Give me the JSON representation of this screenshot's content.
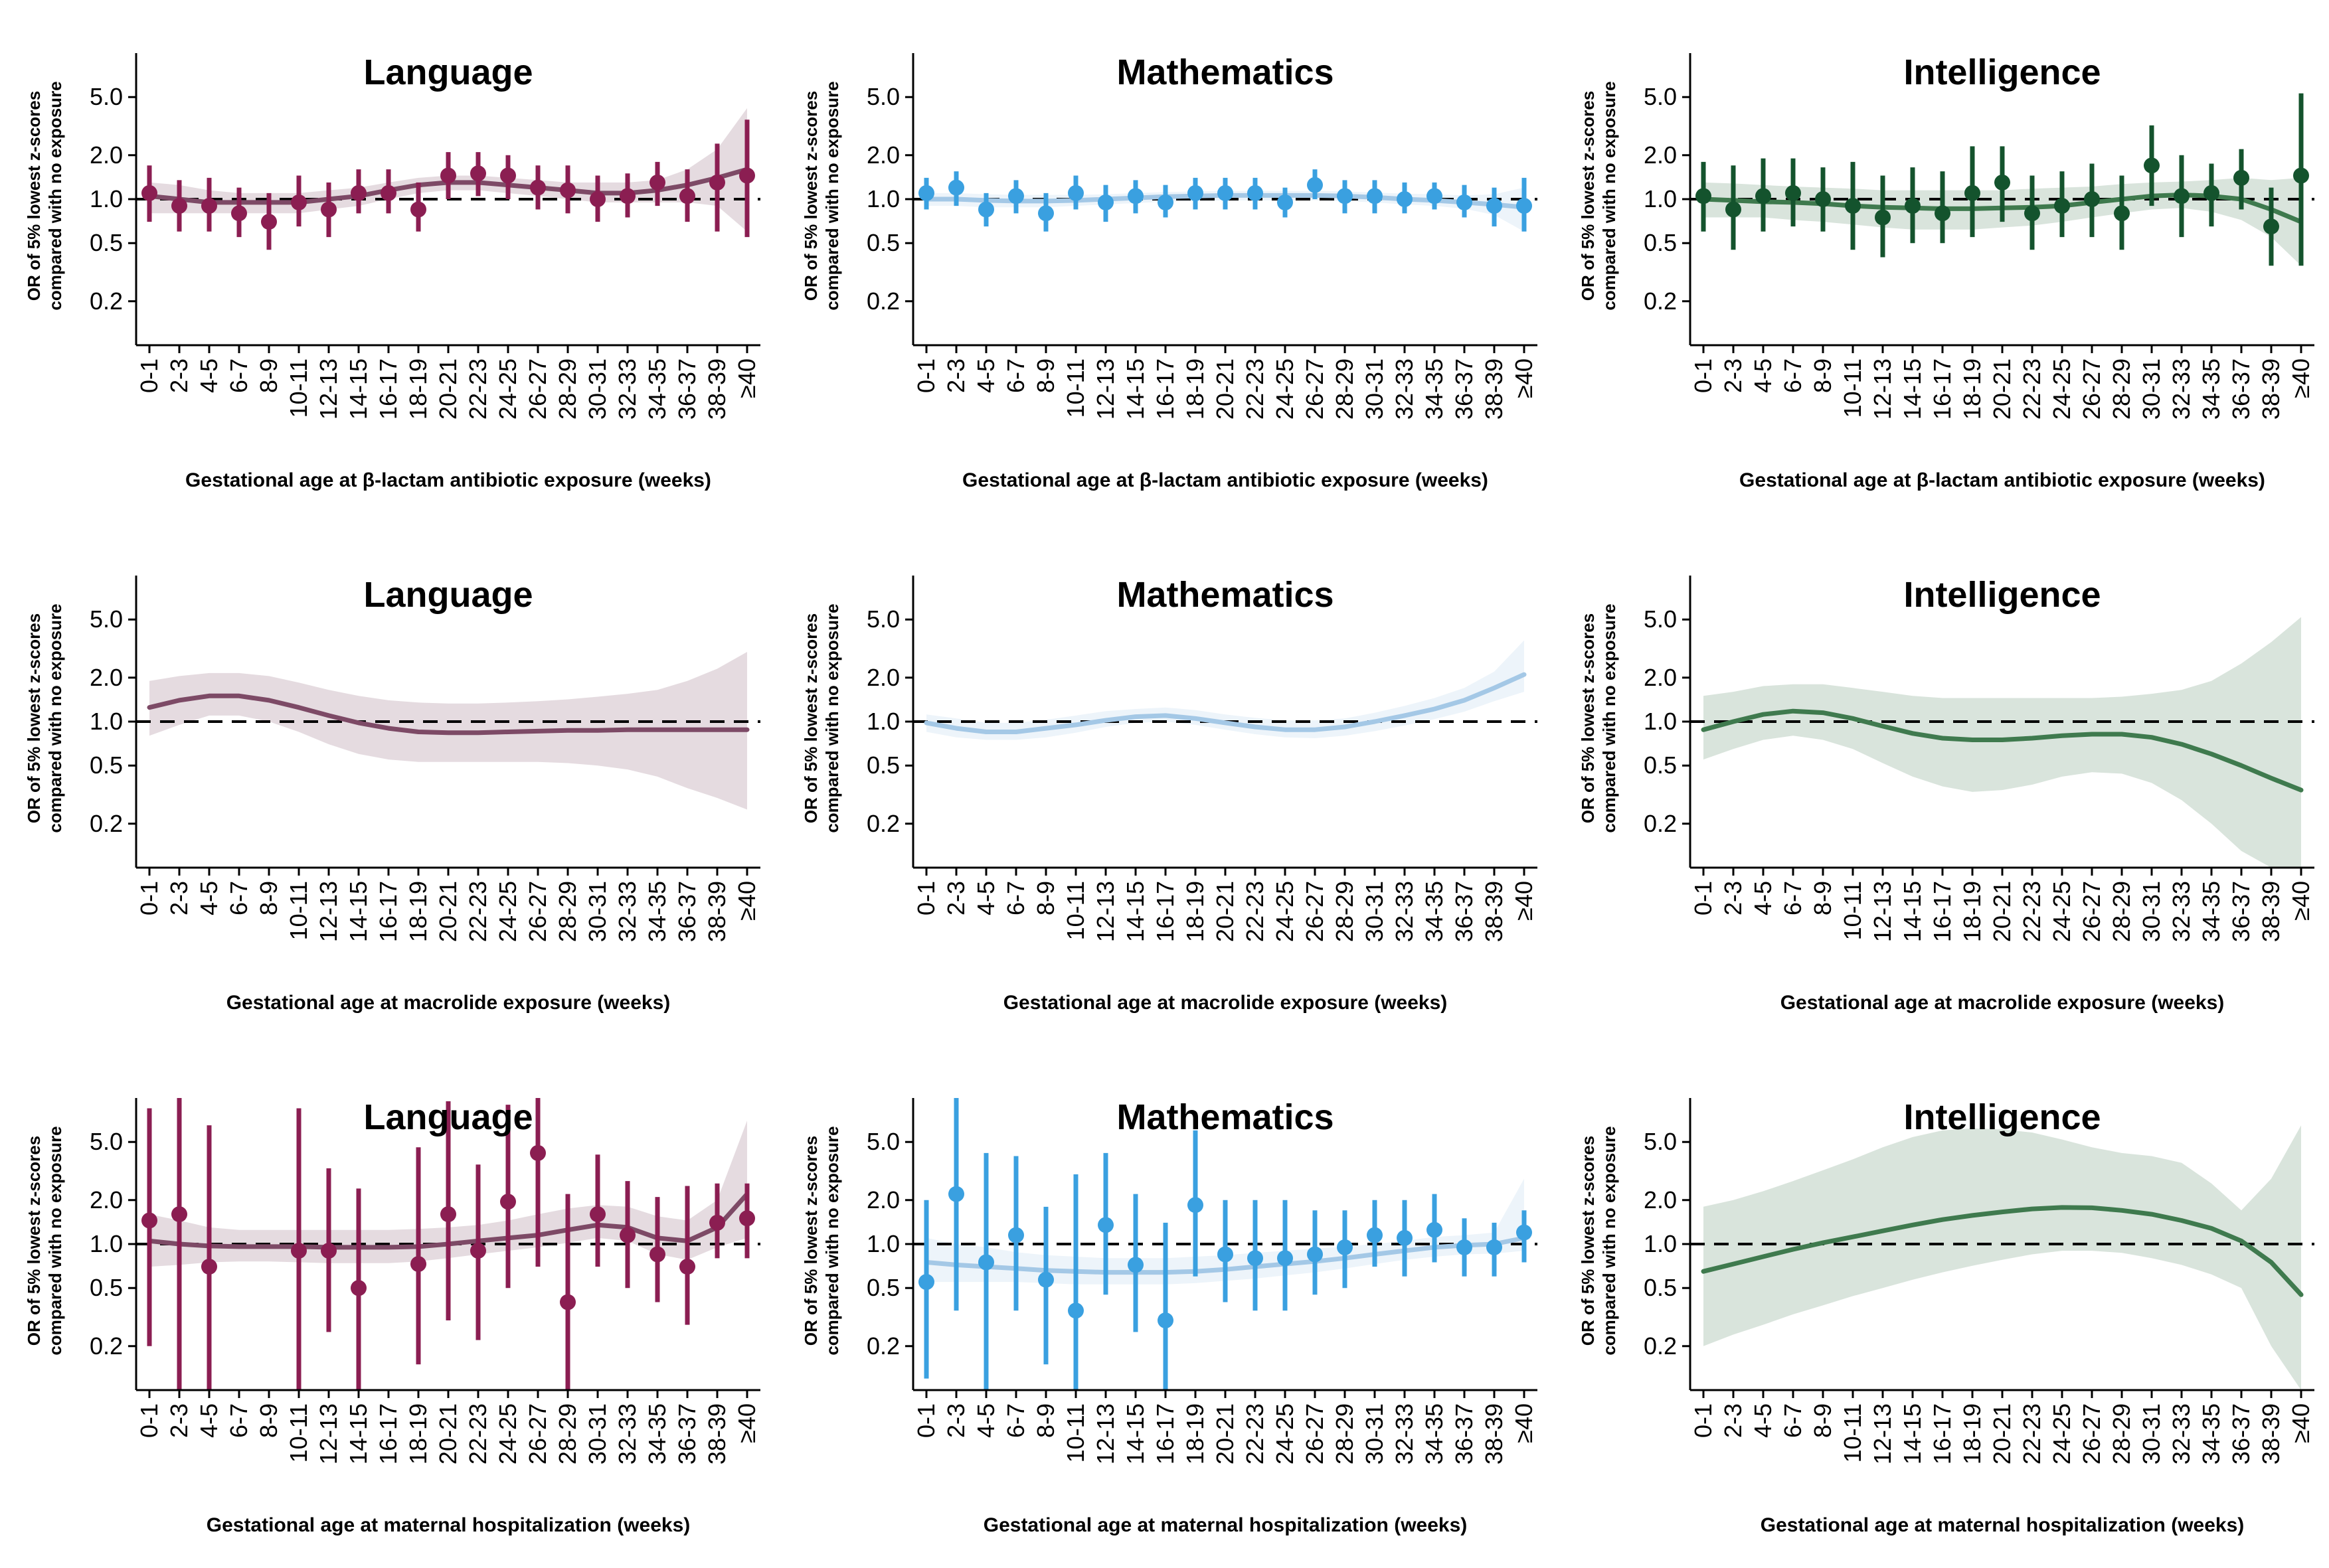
{
  "categories": [
    "0-1",
    "2-3",
    "4-5",
    "6-7",
    "8-9",
    "10-11",
    "12-13",
    "14-15",
    "16-17",
    "18-19",
    "20-21",
    "22-23",
    "24-25",
    "26-27",
    "28-29",
    "30-31",
    "32-33",
    "34-35",
    "36-37",
    "38-39",
    "≥40"
  ],
  "y_axis": {
    "label_line1": "OR of 5% lowest z-scores",
    "label_line2": "compared with no exposure",
    "ticks": [
      0.2,
      0.5,
      1.0,
      2.0,
      5.0
    ],
    "tick_labels": [
      "0.2",
      "0.5",
      "1.0",
      "2.0",
      "5.0"
    ],
    "scale": "log",
    "reference_line": 1.0
  },
  "colors": {
    "language": "#8b1e52",
    "language_curve": "#7d4a66",
    "mathematics": "#3aa0e0",
    "mathematics_curve": "#a4c8e6",
    "intelligence": "#14532d",
    "intelligence_curve": "#3f7a4e"
  },
  "chart_data": [
    {
      "type": "line",
      "title": "Language",
      "xlabel": "Gestational age at β-lactam antibiotic exposure (weeks)",
      "color": "language",
      "ylim": [
        0.1,
        10
      ],
      "grid": false,
      "points": [
        1.1,
        0.9,
        0.9,
        0.8,
        0.7,
        0.95,
        0.85,
        1.1,
        1.1,
        0.85,
        1.45,
        1.5,
        1.45,
        1.2,
        1.15,
        1.0,
        1.05,
        1.3,
        1.05,
        1.3,
        1.45
      ],
      "err_lo": [
        0.7,
        0.6,
        0.6,
        0.55,
        0.45,
        0.65,
        0.55,
        0.8,
        0.8,
        0.6,
        1.0,
        1.05,
        1.0,
        0.85,
        0.8,
        0.7,
        0.75,
        0.9,
        0.7,
        0.6,
        0.55
      ],
      "err_hi": [
        1.7,
        1.35,
        1.4,
        1.2,
        1.1,
        1.45,
        1.3,
        1.6,
        1.6,
        1.3,
        2.1,
        2.1,
        2.0,
        1.7,
        1.7,
        1.45,
        1.5,
        1.8,
        1.6,
        2.4,
        3.5
      ],
      "curve": [
        1.05,
        1.0,
        0.95,
        0.95,
        0.95,
        0.95,
        1.0,
        1.05,
        1.15,
        1.25,
        1.3,
        1.3,
        1.25,
        1.2,
        1.15,
        1.1,
        1.1,
        1.15,
        1.25,
        1.4,
        1.6
      ],
      "ci_lo": [
        0.8,
        0.8,
        0.8,
        0.8,
        0.8,
        0.8,
        0.85,
        0.9,
        1.0,
        1.1,
        1.15,
        1.15,
        1.1,
        1.05,
        1.0,
        0.95,
        0.95,
        0.95,
        0.95,
        0.9,
        0.6
      ],
      "ci_hi": [
        1.3,
        1.25,
        1.15,
        1.1,
        1.1,
        1.1,
        1.15,
        1.2,
        1.3,
        1.4,
        1.45,
        1.45,
        1.4,
        1.35,
        1.3,
        1.3,
        1.3,
        1.35,
        1.6,
        2.2,
        4.2
      ]
    },
    {
      "type": "line",
      "title": "Mathematics",
      "xlabel": "Gestational age at β-lactam antibiotic exposure (weeks)",
      "color": "mathematics",
      "ylim": [
        0.1,
        10
      ],
      "grid": false,
      "points": [
        1.1,
        1.2,
        0.85,
        1.05,
        0.8,
        1.1,
        0.95,
        1.05,
        0.95,
        1.1,
        1.1,
        1.1,
        0.95,
        1.25,
        1.05,
        1.05,
        1.0,
        1.05,
        0.95,
        0.9,
        0.9
      ],
      "err_lo": [
        0.85,
        0.9,
        0.65,
        0.8,
        0.6,
        0.85,
        0.7,
        0.8,
        0.75,
        0.85,
        0.85,
        0.85,
        0.75,
        1.0,
        0.8,
        0.8,
        0.8,
        0.85,
        0.75,
        0.65,
        0.6
      ],
      "err_hi": [
        1.4,
        1.55,
        1.1,
        1.35,
        1.1,
        1.45,
        1.25,
        1.35,
        1.25,
        1.4,
        1.4,
        1.4,
        1.2,
        1.6,
        1.35,
        1.35,
        1.3,
        1.3,
        1.25,
        1.2,
        1.4
      ],
      "curve": [
        1.0,
        1.0,
        0.98,
        0.97,
        0.97,
        0.98,
        1.0,
        1.02,
        1.04,
        1.05,
        1.06,
        1.06,
        1.06,
        1.06,
        1.05,
        1.03,
        1.0,
        0.98,
        0.95,
        0.92,
        0.88
      ],
      "ci_lo": [
        0.9,
        0.9,
        0.88,
        0.88,
        0.88,
        0.9,
        0.92,
        0.94,
        0.96,
        0.97,
        0.98,
        0.98,
        0.98,
        0.98,
        0.97,
        0.95,
        0.92,
        0.9,
        0.86,
        0.78,
        0.6
      ],
      "ci_hi": [
        1.1,
        1.1,
        1.08,
        1.07,
        1.07,
        1.07,
        1.08,
        1.1,
        1.12,
        1.13,
        1.14,
        1.14,
        1.14,
        1.14,
        1.13,
        1.11,
        1.09,
        1.08,
        1.06,
        1.08,
        1.2
      ]
    },
    {
      "type": "line",
      "title": "Intelligence",
      "xlabel": "Gestational age at β-lactam antibiotic exposure (weeks)",
      "color": "intelligence",
      "ylim": [
        0.1,
        10
      ],
      "grid": false,
      "points": [
        1.05,
        0.85,
        1.05,
        1.1,
        1.0,
        0.9,
        0.75,
        0.9,
        0.8,
        1.1,
        1.3,
        0.8,
        0.9,
        1.0,
        0.8,
        1.7,
        1.05,
        1.1,
        1.4,
        0.65,
        1.45
      ],
      "err_lo": [
        0.6,
        0.45,
        0.6,
        0.65,
        0.6,
        0.45,
        0.4,
        0.5,
        0.5,
        0.55,
        0.7,
        0.45,
        0.55,
        0.55,
        0.45,
        0.9,
        0.55,
        0.65,
        0.85,
        0.35,
        0.35
      ],
      "err_hi": [
        1.8,
        1.7,
        1.9,
        1.9,
        1.65,
        1.8,
        1.45,
        1.65,
        1.55,
        2.3,
        2.3,
        1.45,
        1.55,
        1.75,
        1.45,
        3.2,
        2.0,
        1.75,
        2.2,
        1.2,
        5.3
      ],
      "curve": [
        1.0,
        0.98,
        0.96,
        0.95,
        0.93,
        0.9,
        0.88,
        0.87,
        0.86,
        0.86,
        0.87,
        0.88,
        0.9,
        0.95,
        1.0,
        1.05,
        1.07,
        1.05,
        1.0,
        0.85,
        0.7
      ],
      "ci_lo": [
        0.75,
        0.75,
        0.75,
        0.72,
        0.7,
        0.67,
        0.64,
        0.62,
        0.62,
        0.62,
        0.64,
        0.66,
        0.7,
        0.75,
        0.8,
        0.85,
        0.87,
        0.82,
        0.72,
        0.55,
        0.35
      ],
      "ci_hi": [
        1.3,
        1.28,
        1.25,
        1.22,
        1.2,
        1.18,
        1.15,
        1.15,
        1.15,
        1.15,
        1.15,
        1.18,
        1.2,
        1.22,
        1.27,
        1.3,
        1.32,
        1.35,
        1.4,
        1.35,
        1.4
      ]
    },
    {
      "type": "line",
      "title": "Language",
      "xlabel": "Gestational age at macrolide exposure (weeks)",
      "color": "language",
      "ylim": [
        0.1,
        10
      ],
      "grid": false,
      "curve": [
        1.25,
        1.4,
        1.5,
        1.5,
        1.4,
        1.25,
        1.1,
        0.98,
        0.9,
        0.85,
        0.84,
        0.84,
        0.85,
        0.86,
        0.87,
        0.87,
        0.88,
        0.88,
        0.88,
        0.88,
        0.88
      ],
      "ci_lo": [
        0.8,
        0.95,
        1.1,
        1.1,
        1.0,
        0.85,
        0.7,
        0.6,
        0.55,
        0.53,
        0.53,
        0.53,
        0.53,
        0.53,
        0.52,
        0.5,
        0.47,
        0.42,
        0.35,
        0.3,
        0.25
      ],
      "ci_hi": [
        1.9,
        2.05,
        2.15,
        2.15,
        2.05,
        1.85,
        1.65,
        1.5,
        1.4,
        1.35,
        1.33,
        1.33,
        1.35,
        1.38,
        1.42,
        1.48,
        1.55,
        1.65,
        1.9,
        2.3,
        3.0
      ]
    },
    {
      "type": "line",
      "title": "Mathematics",
      "xlabel": "Gestational age at macrolide exposure (weeks)",
      "color": "mathematics",
      "ylim": [
        0.1,
        10
      ],
      "grid": false,
      "curve": [
        0.98,
        0.9,
        0.85,
        0.85,
        0.9,
        0.95,
        1.02,
        1.08,
        1.1,
        1.05,
        0.98,
        0.92,
        0.88,
        0.88,
        0.92,
        1.0,
        1.1,
        1.22,
        1.4,
        1.7,
        2.1
      ],
      "ci_lo": [
        0.85,
        0.78,
        0.75,
        0.75,
        0.78,
        0.84,
        0.92,
        0.98,
        1.0,
        0.95,
        0.88,
        0.82,
        0.78,
        0.77,
        0.8,
        0.86,
        0.94,
        1.04,
        1.17,
        1.38,
        1.6
      ],
      "ci_hi": [
        1.12,
        1.05,
        0.98,
        0.98,
        1.03,
        1.1,
        1.18,
        1.22,
        1.25,
        1.2,
        1.12,
        1.06,
        1.02,
        1.02,
        1.05,
        1.15,
        1.28,
        1.45,
        1.7,
        2.2,
        3.6
      ]
    },
    {
      "type": "line",
      "title": "Intelligence",
      "xlabel": "Gestational age at macrolide exposure (weeks)",
      "color": "intelligence",
      "ylim": [
        0.1,
        10
      ],
      "grid": false,
      "curve": [
        0.88,
        1.0,
        1.12,
        1.18,
        1.15,
        1.05,
        0.93,
        0.83,
        0.77,
        0.75,
        0.75,
        0.77,
        0.8,
        0.82,
        0.82,
        0.78,
        0.7,
        0.6,
        0.5,
        0.41,
        0.34
      ],
      "ci_lo": [
        0.55,
        0.65,
        0.75,
        0.8,
        0.75,
        0.65,
        0.52,
        0.42,
        0.36,
        0.33,
        0.34,
        0.37,
        0.42,
        0.45,
        0.44,
        0.38,
        0.29,
        0.2,
        0.13,
        0.09,
        0.06
      ],
      "ci_hi": [
        1.5,
        1.6,
        1.75,
        1.8,
        1.8,
        1.7,
        1.6,
        1.5,
        1.45,
        1.45,
        1.45,
        1.45,
        1.45,
        1.45,
        1.48,
        1.55,
        1.65,
        1.9,
        2.5,
        3.5,
        5.2
      ]
    },
    {
      "type": "line",
      "title": "Language",
      "xlabel": "Gestational age at maternal hospitalization (weeks)",
      "color": "language",
      "ylim": [
        0.1,
        10
      ],
      "grid": false,
      "points": [
        1.45,
        1.6,
        0.7,
        null,
        null,
        0.9,
        0.9,
        0.5,
        null,
        0.73,
        1.6,
        0.9,
        1.95,
        4.2,
        0.4,
        1.6,
        1.15,
        0.85,
        0.7,
        1.4,
        1.5
      ],
      "err_lo": [
        0.2,
        0.05,
        0.05,
        null,
        null,
        0.05,
        0.25,
        0.1,
        null,
        0.15,
        0.3,
        0.22,
        0.5,
        0.7,
        0.06,
        0.7,
        0.5,
        0.4,
        0.28,
        0.8,
        0.8
      ],
      "err_hi": [
        8.5,
        10,
        6.5,
        null,
        null,
        8.5,
        3.3,
        2.4,
        null,
        4.6,
        9.5,
        3.5,
        9,
        10,
        2.2,
        4.1,
        2.7,
        2.1,
        2.5,
        2.6,
        2.6
      ],
      "curve": [
        1.05,
        1.0,
        0.97,
        0.96,
        0.96,
        0.96,
        0.95,
        0.95,
        0.95,
        0.96,
        1.0,
        1.05,
        1.1,
        1.15,
        1.25,
        1.35,
        1.3,
        1.1,
        1.05,
        1.3,
        2.2
      ],
      "ci_lo": [
        0.7,
        0.72,
        0.75,
        0.76,
        0.76,
        0.75,
        0.74,
        0.74,
        0.74,
        0.76,
        0.8,
        0.85,
        0.9,
        0.95,
        1.02,
        1.1,
        1.05,
        0.85,
        0.78,
        0.95,
        1.1
      ],
      "ci_hi": [
        1.6,
        1.45,
        1.3,
        1.25,
        1.25,
        1.25,
        1.25,
        1.25,
        1.25,
        1.27,
        1.3,
        1.35,
        1.45,
        1.6,
        1.75,
        1.85,
        1.8,
        1.55,
        1.45,
        2.0,
        7.0
      ]
    },
    {
      "type": "line",
      "title": "Mathematics",
      "xlabel": "Gestational age at maternal hospitalization (weeks)",
      "color": "mathematics",
      "ylim": [
        0.1,
        10
      ],
      "grid": false,
      "points": [
        0.55,
        2.2,
        0.75,
        1.15,
        0.57,
        0.35,
        1.35,
        0.72,
        0.3,
        1.85,
        0.85,
        0.8,
        0.8,
        0.85,
        0.95,
        1.15,
        1.1,
        1.25,
        0.95,
        0.95,
        1.2
      ],
      "err_lo": [
        0.12,
        0.35,
        0.1,
        0.35,
        0.15,
        0.05,
        0.45,
        0.25,
        0.05,
        0.6,
        0.4,
        0.35,
        0.35,
        0.45,
        0.5,
        0.7,
        0.6,
        0.75,
        0.6,
        0.6,
        0.75
      ],
      "err_hi": [
        2.0,
        10,
        4.2,
        4.0,
        1.8,
        3.0,
        4.2,
        2.2,
        1.4,
        6.0,
        2.0,
        2.0,
        2.0,
        1.7,
        1.7,
        2.0,
        2.0,
        2.2,
        1.5,
        1.4,
        1.7
      ],
      "curve": [
        0.75,
        0.72,
        0.7,
        0.68,
        0.66,
        0.65,
        0.64,
        0.64,
        0.64,
        0.65,
        0.67,
        0.7,
        0.73,
        0.76,
        0.8,
        0.85,
        0.9,
        0.95,
        0.98,
        1.0,
        1.1
      ],
      "ci_lo": [
        0.55,
        0.55,
        0.55,
        0.55,
        0.54,
        0.53,
        0.53,
        0.53,
        0.53,
        0.54,
        0.56,
        0.58,
        0.61,
        0.64,
        0.68,
        0.73,
        0.78,
        0.82,
        0.85,
        0.86,
        0.9
      ],
      "ci_hi": [
        1.1,
        1.0,
        0.95,
        0.88,
        0.84,
        0.82,
        0.8,
        0.8,
        0.8,
        0.82,
        0.84,
        0.87,
        0.9,
        0.93,
        0.96,
        1.0,
        1.05,
        1.12,
        1.15,
        1.2,
        2.8
      ]
    },
    {
      "type": "line",
      "title": "Intelligence",
      "xlabel": "Gestational age at maternal hospitalization (weeks)",
      "color": "intelligence",
      "ylim": [
        0.1,
        10
      ],
      "grid": false,
      "curve": [
        0.65,
        0.73,
        0.82,
        0.92,
        1.02,
        1.12,
        1.23,
        1.35,
        1.47,
        1.57,
        1.66,
        1.74,
        1.78,
        1.77,
        1.7,
        1.6,
        1.45,
        1.28,
        1.05,
        0.75,
        0.45
      ],
      "ci_lo": [
        0.2,
        0.24,
        0.28,
        0.33,
        0.38,
        0.44,
        0.5,
        0.57,
        0.64,
        0.71,
        0.78,
        0.85,
        0.9,
        0.9,
        0.87,
        0.8,
        0.72,
        0.62,
        0.5,
        0.2,
        0.05
      ],
      "ci_hi": [
        1.8,
        2.0,
        2.3,
        2.7,
        3.2,
        3.8,
        4.6,
        5.4,
        6.0,
        6.2,
        6.1,
        5.8,
        5.2,
        4.6,
        4.2,
        4.0,
        3.6,
        2.6,
        1.7,
        2.8,
        6.5
      ]
    }
  ]
}
